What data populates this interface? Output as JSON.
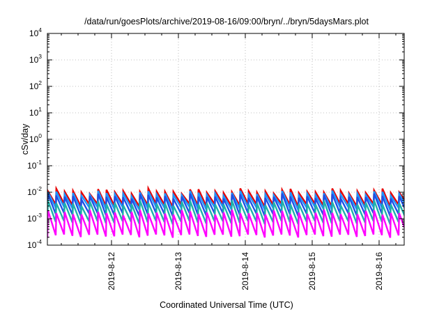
{
  "chart_data": {
    "type": "line",
    "title": "/data/run/goesPlots/archive/2019-08-16/09:00/bryn/../bryn/5daysMars.plot",
    "xlabel": "Coordinated Universal Time (UTC)",
    "ylabel": "cSv/day",
    "yscale": "log",
    "ylim": [
      0.0001,
      10000
    ],
    "y_ticks": [
      {
        "base": "10",
        "exp": "-4"
      },
      {
        "base": "10",
        "exp": "-3"
      },
      {
        "base": "10",
        "exp": "-2"
      },
      {
        "base": "10",
        "exp": "-1"
      },
      {
        "base": "10",
        "exp": "0"
      },
      {
        "base": "10",
        "exp": "1"
      },
      {
        "base": "10",
        "exp": "2"
      },
      {
        "base": "10",
        "exp": "3"
      },
      {
        "base": "10",
        "exp": "4"
      }
    ],
    "x_range_days": [
      "2019-08-11",
      "2019-08-16"
    ],
    "xlim": [
      "2019-08-11T01:00",
      "2019-08-16T09:00"
    ],
    "x_ticks": [
      "2019-8-12",
      "2019-8-13",
      "2019-8-14",
      "2019-8-15",
      "2019-8-16"
    ],
    "grid": true,
    "series_colors": [
      "#ff00ff",
      "#20b2aa",
      "#1e50e6",
      "#1e96ff",
      "#e60000"
    ],
    "series": [
      {
        "color": "#e60000",
        "peak": 0.014,
        "trough": 0.0032
      },
      {
        "color": "#1e96ff",
        "peak": 0.0115,
        "trough": 0.0024
      },
      {
        "color": "#1e50e6",
        "peak": 0.009,
        "trough": 0.0014
      },
      {
        "color": "#20b2aa",
        "peak": 0.005,
        "trough": 0.0007
      },
      {
        "color": "#ff00ff",
        "peak": 0.0022,
        "trough": 0.00022
      }
    ],
    "cycle_hours": 3
  }
}
